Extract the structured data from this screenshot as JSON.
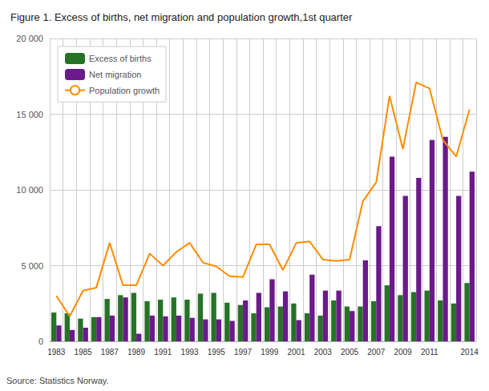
{
  "chart_data": {
    "type": "bar",
    "title": "Figure 1. Excess of births, net migration and population growth,1st quarter",
    "categories": [
      "1983",
      null,
      "1985",
      null,
      "1987",
      null,
      "1989",
      null,
      "1991",
      null,
      "1993",
      null,
      "1995",
      null,
      "1997",
      null,
      "1999",
      null,
      "2001",
      null,
      "2003",
      null,
      "2005",
      null,
      "2007",
      null,
      "2009",
      null,
      "2011",
      null,
      null,
      "2014"
    ],
    "series": [
      {
        "name": "Excess of births",
        "type": "bar",
        "color": "#267326",
        "values": [
          1900,
          1850,
          1500,
          1600,
          2800,
          3050,
          3200,
          2650,
          2750,
          2900,
          2750,
          3150,
          3200,
          2550,
          2400,
          1850,
          2250,
          2300,
          2500,
          1850,
          1700,
          2700,
          2300,
          2300,
          2650,
          3700,
          3050,
          3250,
          3350,
          2700,
          2500,
          3850
        ]
      },
      {
        "name": "Net migration",
        "type": "bar",
        "color": "#6a1a8a",
        "values": [
          1050,
          750,
          900,
          1600,
          1700,
          2900,
          500,
          1700,
          1650,
          1700,
          1550,
          1450,
          1450,
          1350,
          2700,
          3200,
          4100,
          3300,
          1400,
          4400,
          3350,
          3350,
          2000,
          5350,
          7600,
          12200,
          9600,
          10800,
          13300,
          13500,
          9600,
          11200
        ]
      },
      {
        "name": "Population growth",
        "type": "line",
        "color": "#ff8c00",
        "values": [
          3000,
          1650,
          3350,
          3550,
          6500,
          3700,
          3700,
          5800,
          5000,
          5900,
          6500,
          5200,
          4950,
          4300,
          4250,
          6400,
          6400,
          4700,
          6500,
          6600,
          5400,
          5300,
          5400,
          9250,
          10500,
          16200,
          12700,
          17100,
          16700,
          13300,
          12200,
          15300
        ]
      }
    ],
    "ylim": [
      0,
      20000
    ],
    "yticks": [
      0,
      {
        "value": 5000,
        "label": "5 000"
      },
      {
        "value": 10000,
        "label": "10 000"
      },
      {
        "value": 15000,
        "label": "15 000"
      },
      {
        "value": 20000,
        "label": "20 000"
      }
    ],
    "grid": true,
    "legend": "upper left",
    "annotations": [
      "Source: Statistics Norway."
    ]
  }
}
